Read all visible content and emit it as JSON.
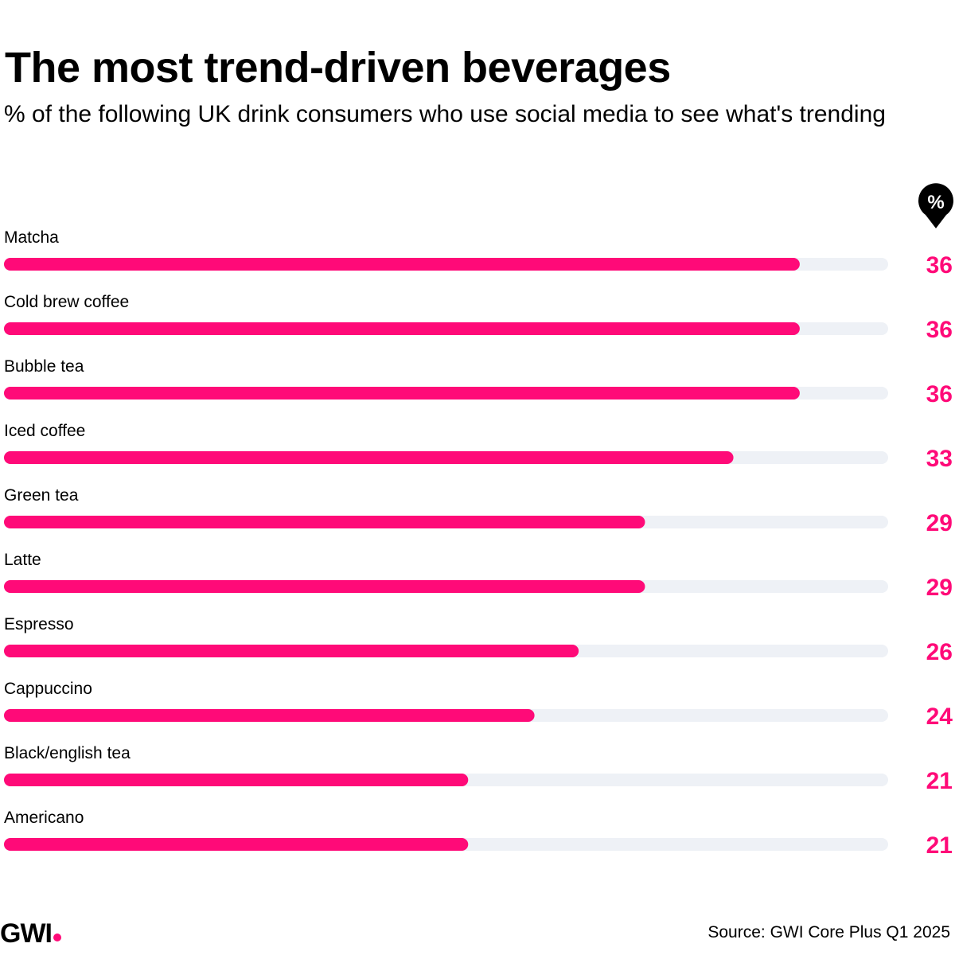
{
  "header": {
    "title": "The most trend-driven beverages",
    "subtitle": "% of the following UK drink consumers who use social media to see what's trending"
  },
  "badge": {
    "label": "%",
    "icon": "percent-pin-icon"
  },
  "colors": {
    "bar": "#ff0a78",
    "track": "#eef1f6",
    "text": "#000000",
    "accent": "#ff0a78"
  },
  "chart_data": {
    "type": "bar",
    "orientation": "horizontal",
    "title": "The most trend-driven beverages",
    "subtitle": "% of the following UK drink consumers who use social media to see what's trending",
    "unit": "%",
    "xlim": [
      0,
      40
    ],
    "categories": [
      "Matcha",
      "Cold brew coffee",
      "Bubble tea",
      "Iced coffee",
      "Green tea",
      "Latte",
      "Espresso",
      "Cappuccino",
      "Black/english tea",
      "Americano"
    ],
    "values": [
      36,
      36,
      36,
      33,
      29,
      29,
      26,
      24,
      21,
      21
    ],
    "value_labels": [
      "36",
      "36",
      "36",
      "33",
      "29",
      "29",
      "26",
      "24",
      "21",
      "21"
    ]
  },
  "footer": {
    "logo": "GWI",
    "source": "Source: GWI Core Plus Q1 2025"
  }
}
